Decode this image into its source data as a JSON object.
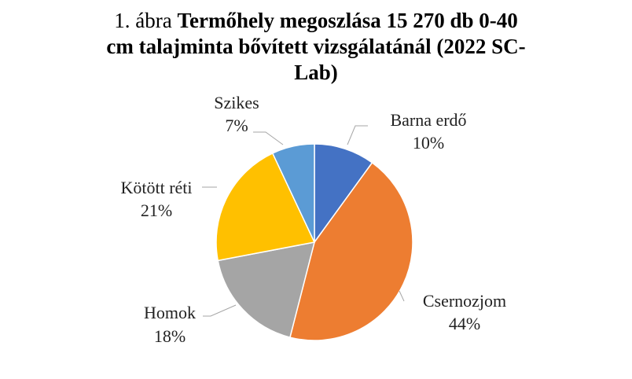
{
  "chart_data": {
    "type": "pie",
    "title_prefix": "1. ábra",
    "title_line1": "Termőhely  megoszlása 15 270  db 0-40",
    "title_line2": "cm talajminta bővített vizsgálatánál (2022 SC-",
    "title_line3": "Lab)",
    "start": "top",
    "direction": "clockwise",
    "slices": [
      {
        "label": "Barna erdő",
        "value": 10,
        "pct": "10%",
        "color": "#4472C4"
      },
      {
        "label": "Csernozjom",
        "value": 44,
        "pct": "44%",
        "color": "#ED7D31"
      },
      {
        "label": "Homok",
        "value": 18,
        "pct": "18%",
        "color": "#A5A5A5"
      },
      {
        "label": "Kötött réti",
        "value": 21,
        "pct": "21%",
        "color": "#FFC000"
      },
      {
        "label": "Szikes",
        "value": 7,
        "pct": "7%",
        "color": "#5B9BD5"
      }
    ]
  }
}
